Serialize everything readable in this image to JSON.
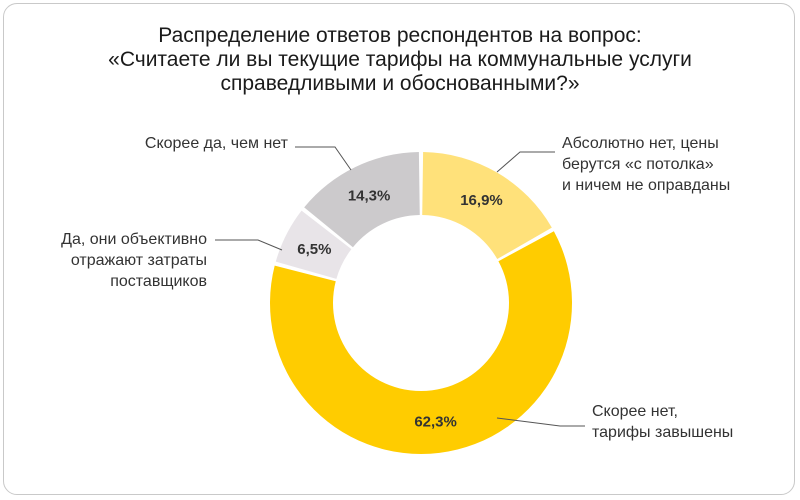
{
  "chart_data": {
    "type": "pie",
    "title_lines": [
      "Распределение ответов респондентов на вопрос:",
      "«Считаете ли вы текущие тарифы на коммунальные услуги",
      "справедливыми и обоснованными?»"
    ],
    "slices": [
      {
        "label_lines": [
          "Абсолютно нет, цены",
          "берутся «с потолка»",
          "и ничем не оправданы"
        ],
        "value": 16.9,
        "value_label": "16,9%",
        "color": "#FFE17A"
      },
      {
        "label_lines": [
          "Скорее нет,",
          "тарифы завышены"
        ],
        "value": 62.3,
        "value_label": "62,3%",
        "color": "#FFCC00"
      },
      {
        "label_lines": [
          "Да, они объективно",
          "отражают затраты",
          "поставщиков"
        ],
        "value": 6.5,
        "value_label": "6,5%",
        "color": "#E8E4E8"
      },
      {
        "label_lines": [
          "Скорее да, чем нет"
        ],
        "value": 14.3,
        "value_label": "14,3%",
        "color": "#CCCACC"
      }
    ],
    "legend": "none"
  }
}
